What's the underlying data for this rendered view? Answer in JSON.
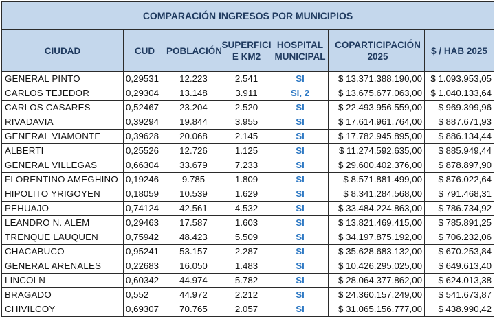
{
  "title": "COMPARACIÓN INGRESOS POR MUNICIPIOS",
  "headers": {
    "ciudad": "CIUDAD",
    "cud": "CUD",
    "poblacion": "POBLACIÓN",
    "superficie": "SUPERFICIE KM2",
    "hospital": "HOSPITAL MUNICIPAL",
    "coparticipacion": "COPARTICIPACIÓN 2025",
    "hab": "$ / HAB 2025"
  },
  "rows": [
    {
      "ciudad": "GENERAL PINTO",
      "cud": "0,29531",
      "poblacion": "12.223",
      "superficie": "2.541",
      "hospital": "SI",
      "coparticipacion": "$ 13.371.388.190,00",
      "hab": "$ 1.093.953,05"
    },
    {
      "ciudad": "CARLOS TEJEDOR",
      "cud": "0,29304",
      "poblacion": "13.148",
      "superficie": "3.911",
      "hospital": "SI, 2",
      "coparticipacion": "$ 13.675.677.063,00",
      "hab": "$ 1.040.133,64"
    },
    {
      "ciudad": "CARLOS CASARES",
      "cud": "0,52467",
      "poblacion": "23.204",
      "superficie": "2.520",
      "hospital": "SI",
      "coparticipacion": "$ 22.493.956.559,00",
      "hab": "$ 969.399,96"
    },
    {
      "ciudad": "RIVADAVIA",
      "cud": "0,39294",
      "poblacion": "19.844",
      "superficie": "3.955",
      "hospital": "SI",
      "coparticipacion": "$ 17.614.961.764,00",
      "hab": "$ 887.671,93"
    },
    {
      "ciudad": "GENERAL VIAMONTE",
      "cud": "0,39628",
      "poblacion": "20.068",
      "superficie": "2.145",
      "hospital": "SI",
      "coparticipacion": "$ 17.782.945.895,00",
      "hab": "$ 886.134,44"
    },
    {
      "ciudad": "ALBERTI",
      "cud": "0,25526",
      "poblacion": "12.726",
      "superficie": "1.125",
      "hospital": "SI",
      "coparticipacion": "$ 11.274.592.635,00",
      "hab": "$ 885.949,44"
    },
    {
      "ciudad": "GENERAL VILLEGAS",
      "cud": "0,66304",
      "poblacion": "33.679",
      "superficie": "7.233",
      "hospital": "SI",
      "coparticipacion": "$ 29.600.402.376,00",
      "hab": "$ 878.897,90"
    },
    {
      "ciudad": "FLORENTINO AMEGHINO",
      "cud": "0,19246",
      "poblacion": "9.785",
      "superficie": "1.809",
      "hospital": "SI",
      "coparticipacion": "$ 8.571.881.499,00",
      "hab": "$ 876.022,64"
    },
    {
      "ciudad": "HIPOLITO YRIGOYEN",
      "cud": "0,18059",
      "poblacion": "10.539",
      "superficie": "1.629",
      "hospital": "SI",
      "coparticipacion": "$ 8.341.284.568,00",
      "hab": "$ 791.468,31"
    },
    {
      "ciudad": "PEHUAJO",
      "cud": "0,74124",
      "poblacion": "42.561",
      "superficie": "4.532",
      "hospital": "SI",
      "coparticipacion": "$ 33.484.224.863,00",
      "hab": "$ 786.734,92"
    },
    {
      "ciudad": "LEANDRO N. ALEM",
      "cud": "0,29463",
      "poblacion": "17.587",
      "superficie": "1.603",
      "hospital": "SI",
      "coparticipacion": "$ 13.821.469.415,00",
      "hab": "$ 785.891,25"
    },
    {
      "ciudad": "TRENQUE LAUQUEN",
      "cud": "0,75942",
      "poblacion": "48.423",
      "superficie": "5.509",
      "hospital": "SI",
      "coparticipacion": "$ 34.197.875.192,00",
      "hab": "$ 706.232,06"
    },
    {
      "ciudad": "CHACABUCO",
      "cud": "0,95241",
      "poblacion": "53.157",
      "superficie": "2.287",
      "hospital": "SI",
      "coparticipacion": "$ 35.628.683.132,00",
      "hab": "$ 670.253,84"
    },
    {
      "ciudad": "GENERAL ARENALES",
      "cud": "0,22683",
      "poblacion": "16.050",
      "superficie": "1.483",
      "hospital": "SI",
      "coparticipacion": "$ 10.426.295.025,00",
      "hab": "$ 649.613,40"
    },
    {
      "ciudad": "LINCOLN",
      "cud": "0,60342",
      "poblacion": "44.974",
      "superficie": "5.782",
      "hospital": "SI",
      "coparticipacion": "$ 28.064.377.862,00",
      "hab": "$ 624.013,38"
    },
    {
      "ciudad": "BRAGADO",
      "cud": "0,552",
      "poblacion": "44.972",
      "superficie": "2.212",
      "hospital": "SI",
      "coparticipacion": "$ 24.360.157.249,00",
      "hab": "$ 541.673,87"
    },
    {
      "ciudad": "CHIVILCOY",
      "cud": "0,69307",
      "poblacion": "70.765",
      "superficie": "2.057",
      "hospital": "SI",
      "coparticipacion": "$ 31.065.156.777,00",
      "hab": "$ 438.990,42"
    }
  ]
}
